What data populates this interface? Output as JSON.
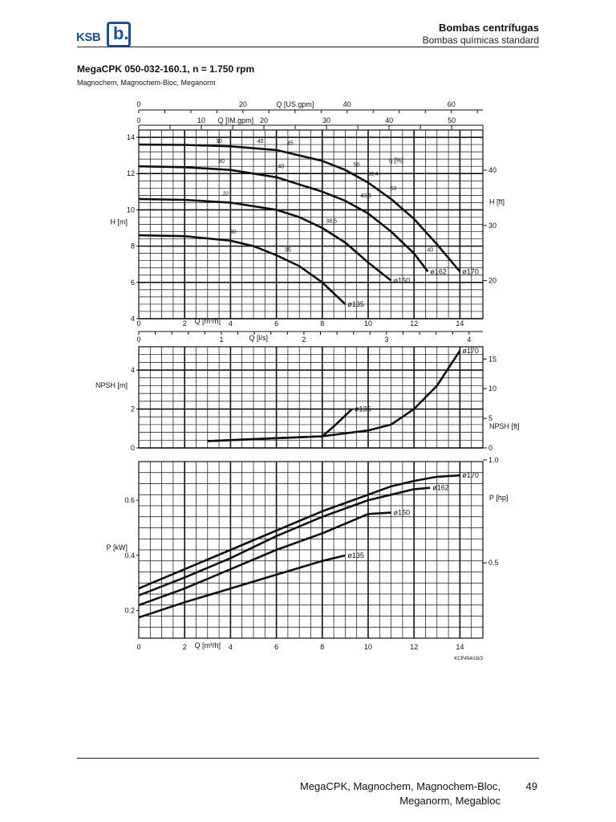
{
  "header": {
    "logo_text": "KSB",
    "logo_mark": "b.",
    "title": "Bombas centrífugas",
    "subtitle": "Bombas químicas standard"
  },
  "document": {
    "title": "MegaCPK 050-032-160.1, n = 1.750 rpm",
    "subtitle": "Magnochem, Magnochem-Bloc, Meganorm",
    "figure_code": "KCP454/18/3"
  },
  "footer": {
    "line1": "MegaCPK, Magnochem, Magnochem-Bloc,",
    "line2": "Meganorm, Megabloc",
    "page_number": "49"
  },
  "chart_data": [
    {
      "type": "line",
      "name": "head",
      "xlabel": "Q [m³/h]",
      "ylabel": "H [m]",
      "y2label": "H [ft]",
      "xlim": [
        0,
        15
      ],
      "ylim": [
        4,
        14.4
      ],
      "x_ticks": [
        "0",
        "2",
        "4",
        "6",
        "8",
        "10",
        "12",
        "14"
      ],
      "y_ticks": [
        "4",
        "6",
        "8",
        "10",
        "12",
        "14"
      ],
      "y2_ticks": [
        "20",
        "30",
        "40"
      ],
      "top_axes": [
        {
          "label": "Q [US.gpm]",
          "ticks": [
            "0",
            "20",
            "40",
            "60"
          ]
        },
        {
          "label": "Q [IM.gpm]",
          "ticks": [
            "0",
            "10",
            "20",
            "30",
            "40",
            "50"
          ]
        }
      ],
      "grid": true,
      "series": [
        {
          "name": "ø170",
          "x": [
            0,
            2,
            4,
            6,
            8,
            9,
            10,
            11,
            12,
            13,
            14
          ],
          "y": [
            13.6,
            13.58,
            13.5,
            13.3,
            12.7,
            12.2,
            11.5,
            10.6,
            9.5,
            8.1,
            6.6
          ]
        },
        {
          "name": "ø162",
          "x": [
            0,
            2,
            4,
            6,
            8,
            9,
            10,
            11,
            12,
            12.6
          ],
          "y": [
            12.4,
            12.35,
            12.2,
            11.8,
            11.0,
            10.5,
            9.8,
            8.8,
            7.6,
            6.6
          ]
        },
        {
          "name": "ø150",
          "x": [
            0,
            2,
            4,
            6,
            7,
            8,
            9,
            10,
            11
          ],
          "y": [
            10.6,
            10.55,
            10.4,
            10.0,
            9.6,
            9.0,
            8.2,
            7.1,
            6.1
          ]
        },
        {
          "name": "ø135",
          "x": [
            0,
            2,
            4,
            5,
            6,
            7,
            8,
            9
          ],
          "y": [
            8.6,
            8.55,
            8.3,
            8.0,
            7.5,
            6.9,
            6.0,
            4.8
          ]
        }
      ],
      "efficiency_labels": [
        {
          "text": "30",
          "x": 3.5,
          "y": 13.6
        },
        {
          "text": "40",
          "x": 5.3,
          "y": 13.6
        },
        {
          "text": "45",
          "x": 6.6,
          "y": 13.5
        },
        {
          "text": "50",
          "x": 9.5,
          "y": 12.3
        },
        {
          "text": "50,4",
          "x": 10.2,
          "y": 11.8
        },
        {
          "text": "50",
          "x": 11.1,
          "y": 11.0
        },
        {
          "text": "30",
          "x": 3.6,
          "y": 12.5
        },
        {
          "text": "40",
          "x": 6.2,
          "y": 12.2
        },
        {
          "text": "43,5",
          "x": 9.9,
          "y": 10.6
        },
        {
          "text": "40",
          "x": 12.7,
          "y": 7.6
        },
        {
          "text": "32",
          "x": 3.8,
          "y": 10.7
        },
        {
          "text": "38,5",
          "x": 8.4,
          "y": 9.2
        },
        {
          "text": "30",
          "x": 4.1,
          "y": 8.6
        },
        {
          "text": "35",
          "x": 6.5,
          "y": 7.6
        }
      ],
      "annotations": [
        {
          "text": "η [%]",
          "x": 10.9,
          "y": 12.6
        }
      ]
    },
    {
      "type": "line",
      "name": "npsh",
      "xlabel": "Q [l/s]",
      "ylabel": "NPSHR [m]",
      "y2label": "NPSHR [ft]",
      "xlim": [
        0,
        15
      ],
      "ylim": [
        0,
        5.2
      ],
      "x_ticks": [
        "0",
        "1",
        "2",
        "3",
        "4"
      ],
      "y_ticks": [
        "0",
        "2",
        "4"
      ],
      "y2_ticks": [
        "0",
        "5",
        "10",
        "15"
      ],
      "grid": true,
      "series": [
        {
          "name": "ø170",
          "x": [
            3,
            5,
            8,
            10,
            11,
            12,
            13,
            14
          ],
          "y": [
            0.35,
            0.45,
            0.6,
            0.9,
            1.2,
            2.0,
            3.2,
            5.0
          ]
        },
        {
          "name": "ø135",
          "x": [
            3,
            5,
            8,
            8.5,
            9.3
          ],
          "y": [
            0.35,
            0.45,
            0.6,
            1.1,
            2.0
          ]
        }
      ]
    },
    {
      "type": "line",
      "name": "power",
      "xlabel": "Q [m³/h]",
      "ylabel": "P [kW]",
      "y2label": "P [hp]",
      "xlim": [
        0,
        15
      ],
      "ylim": [
        0.1,
        0.74
      ],
      "x_ticks": [
        "0",
        "2",
        "4",
        "6",
        "8",
        "10",
        "12",
        "14"
      ],
      "y_ticks": [
        "0.2",
        "0.4",
        "0.6"
      ],
      "y2_ticks": [
        "0.5",
        "1.0"
      ],
      "grid": true,
      "series": [
        {
          "name": "ø170",
          "x": [
            0,
            2,
            4,
            6,
            8,
            10,
            11,
            12,
            13,
            14
          ],
          "y": [
            0.28,
            0.35,
            0.42,
            0.49,
            0.56,
            0.62,
            0.65,
            0.67,
            0.685,
            0.69
          ]
        },
        {
          "name": "ø162",
          "x": [
            0,
            2,
            4,
            6,
            8,
            10,
            11,
            12,
            12.7
          ],
          "y": [
            0.255,
            0.32,
            0.39,
            0.47,
            0.54,
            0.6,
            0.62,
            0.64,
            0.645
          ]
        },
        {
          "name": "ø150",
          "x": [
            0,
            2,
            4,
            6,
            8,
            10,
            11
          ],
          "y": [
            0.22,
            0.28,
            0.35,
            0.42,
            0.48,
            0.55,
            0.555
          ]
        },
        {
          "name": "ø135",
          "x": [
            0,
            2,
            4,
            6,
            8,
            9
          ],
          "y": [
            0.175,
            0.23,
            0.28,
            0.33,
            0.38,
            0.4
          ]
        }
      ]
    }
  ]
}
